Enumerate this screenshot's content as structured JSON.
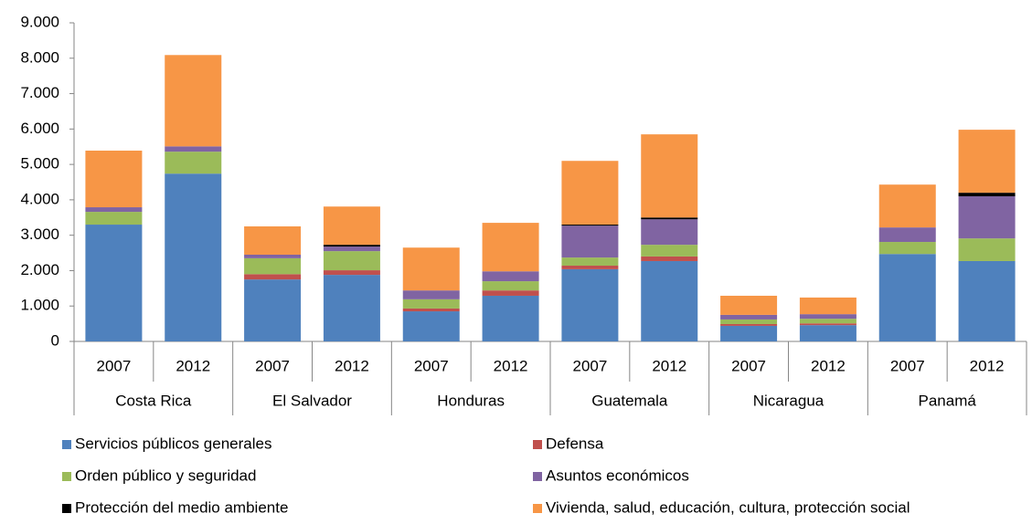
{
  "chart_data": {
    "type": "stacked-bar",
    "categories": [
      "2007",
      "2012",
      "2007",
      "2012",
      "2007",
      "2012",
      "2007",
      "2012",
      "2007",
      "2012",
      "2007",
      "2012"
    ],
    "groups": [
      "Costa Rica",
      "El Salvador",
      "Honduras",
      "Guatemala",
      "Nicaragua",
      "Panamá"
    ],
    "series": [
      {
        "name": "Servicios públicos generales",
        "color": "#4f81bd",
        "values": [
          3300,
          4740,
          1750,
          1880,
          850,
          1290,
          2040,
          2270,
          440,
          460,
          2470,
          2270
        ]
      },
      {
        "name": "Defensa",
        "color": "#c0504d",
        "values": [
          0,
          0,
          150,
          130,
          80,
          150,
          100,
          130,
          50,
          50,
          0,
          0
        ]
      },
      {
        "name": "Orden público y seguridad",
        "color": "#9bbb59",
        "values": [
          360,
          620,
          450,
          540,
          260,
          260,
          230,
          330,
          130,
          130,
          340,
          640
        ]
      },
      {
        "name": "Asuntos económicos",
        "color": "#8064a2",
        "values": [
          130,
          150,
          100,
          130,
          250,
          280,
          900,
          720,
          130,
          130,
          410,
          1190
        ]
      },
      {
        "name": "Protección del medio ambiente",
        "color": "#000000",
        "values": [
          0,
          0,
          0,
          50,
          0,
          0,
          30,
          50,
          0,
          0,
          0,
          100
        ]
      },
      {
        "name": "Vivienda, salud, educación, cultura, protección social",
        "color": "#f79646",
        "values": [
          1600,
          2580,
          800,
          1080,
          1210,
          1370,
          1800,
          2350,
          540,
          470,
          1210,
          1780
        ]
      }
    ],
    "ylim": [
      0,
      9000
    ],
    "yticks": [
      0,
      {
        "value": 1000,
        "label": "1.000"
      },
      {
        "value": 2000,
        "label": "2.000"
      },
      {
        "value": 3000,
        "label": "3.000"
      },
      {
        "value": 4000,
        "label": "4.000"
      },
      {
        "value": 5000,
        "label": "5.000"
      },
      {
        "value": 6000,
        "label": "6.000"
      },
      {
        "value": 7000,
        "label": "7.000"
      },
      {
        "value": 8000,
        "label": "8.000"
      },
      {
        "value": 9000,
        "label": "9.000"
      }
    ]
  }
}
